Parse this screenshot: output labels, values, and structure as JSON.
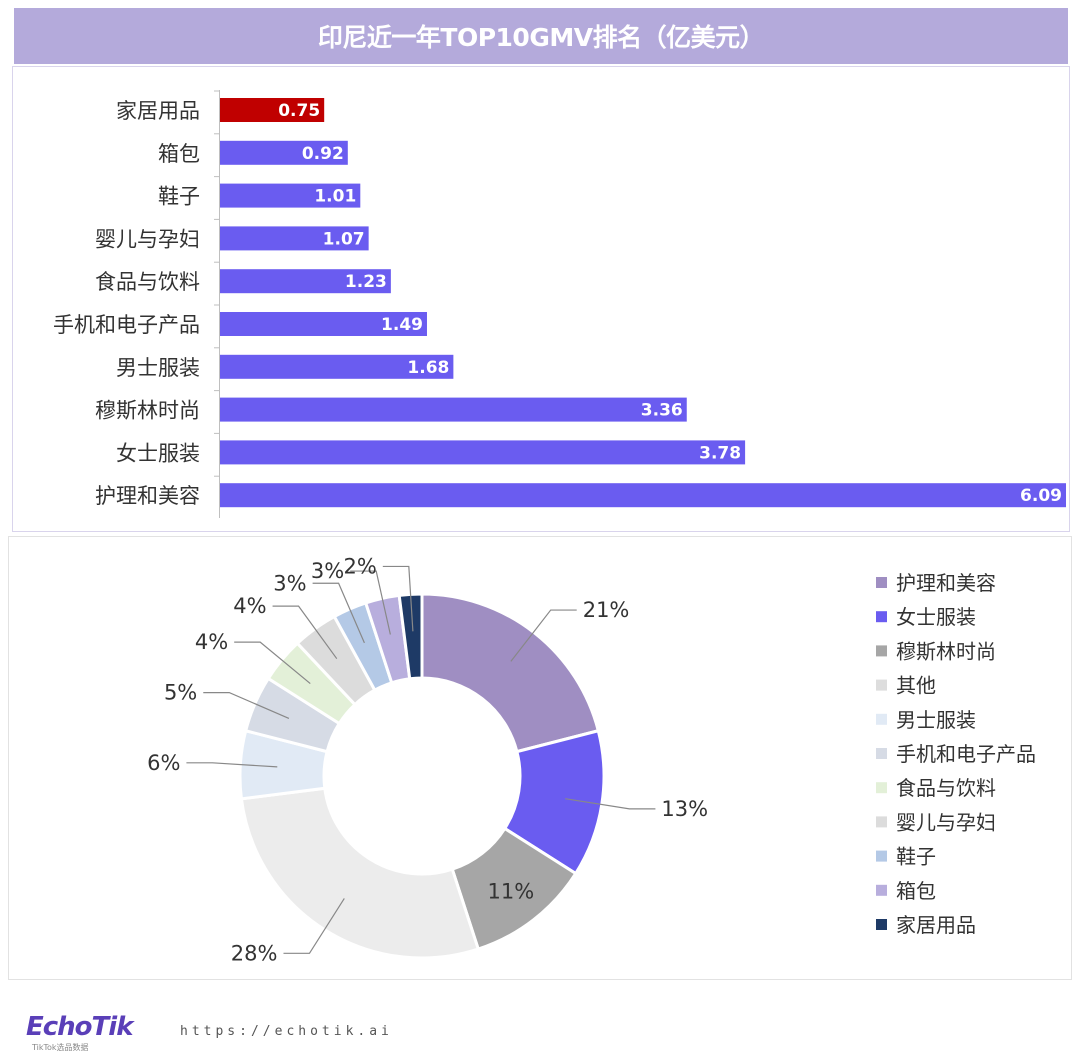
{
  "title": "印尼近一年TOP10GMV排名（亿美元）",
  "chart_data": [
    {
      "type": "bar",
      "orientation": "horizontal",
      "categories": [
        "家居用品",
        "箱包",
        "鞋子",
        "婴儿与孕妇",
        "食品与饮料",
        "手机和电子产品",
        "男士服装",
        "穆斯林时尚",
        "女士服装",
        "护理和美容"
      ],
      "values": [
        0.75,
        0.92,
        1.01,
        1.07,
        1.23,
        1.49,
        1.68,
        3.36,
        3.78,
        6.09
      ],
      "value_labels": [
        "0.75",
        "0.92",
        "1.01",
        "1.07",
        "1.23",
        "1.49",
        "1.68",
        "3.36",
        "3.78",
        "6.09"
      ],
      "colors": [
        "#c00000",
        "#6a5cf0",
        "#6a5cf0",
        "#6a5cf0",
        "#6a5cf0",
        "#6a5cf0",
        "#6a5cf0",
        "#6a5cf0",
        "#6a5cf0",
        "#6a5cf0"
      ],
      "xlim": [
        0,
        6.09
      ],
      "grid": false
    },
    {
      "type": "pie",
      "donut": true,
      "slices": [
        {
          "label": "护理和美容",
          "value": 21,
          "value_label": "21%",
          "color": "#9f8ec2"
        },
        {
          "label": "女士服装",
          "value": 13,
          "value_label": "13%",
          "color": "#6a5cf0"
        },
        {
          "label": "穆斯林时尚",
          "value": 11,
          "value_label": "11%",
          "color": "#a6a6a6"
        },
        {
          "label": "其他",
          "value": 28,
          "value_label": "28%",
          "color": "#ececec"
        },
        {
          "label": "男士服装",
          "value": 6,
          "value_label": "6%",
          "color": "#e1eaf5"
        },
        {
          "label": "手机和电子产品",
          "value": 5,
          "value_label": "5%",
          "color": "#d6dbe5"
        },
        {
          "label": "食品与饮料",
          "value": 4,
          "value_label": "4%",
          "color": "#e3f0d8"
        },
        {
          "label": "婴儿与孕妇",
          "value": 4,
          "value_label": "4%",
          "color": "#dcdcdc"
        },
        {
          "label": "鞋子",
          "value": 3,
          "value_label": "3%",
          "color": "#b4c9e6"
        },
        {
          "label": "箱包",
          "value": 3,
          "value_label": "3%",
          "color": "#b8aedd"
        },
        {
          "label": "家居用品",
          "value": 2,
          "value_label": "2%",
          "color": "#1e3a66"
        }
      ],
      "legend_position": "right"
    }
  ],
  "footer": {
    "logo": "EchoTik",
    "logo_sub": "TikTok选品数据",
    "url": "https://echotik.ai"
  }
}
